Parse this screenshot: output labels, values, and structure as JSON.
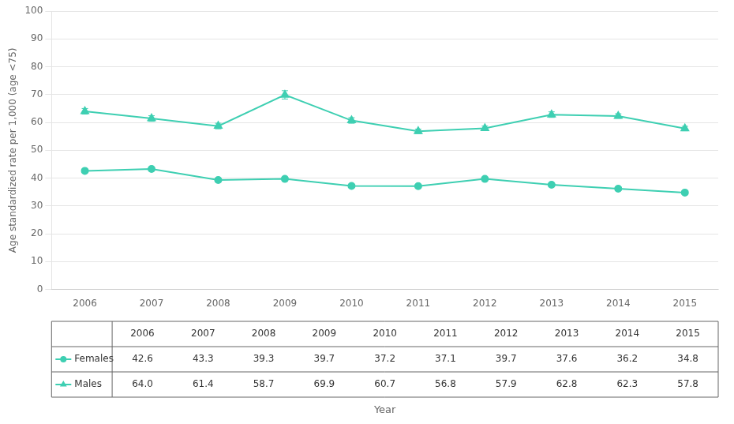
{
  "chart_data": {
    "type": "line",
    "x": [
      2006,
      2007,
      2008,
      2009,
      2010,
      2011,
      2012,
      2013,
      2014,
      2015
    ],
    "xlabel": "Year",
    "ylabel": "Age standardized rate per 1,000 (age <75)",
    "xlim": [
      2005.5,
      2015.5
    ],
    "xticks": [
      2006,
      2007,
      2008,
      2009,
      2010,
      2011,
      2012,
      2013,
      2014,
      2015
    ],
    "ylim": [
      0,
      100
    ],
    "yticks": [
      0,
      10,
      20,
      30,
      40,
      50,
      60,
      70,
      80,
      90,
      100
    ],
    "grid": true,
    "data_labels": true,
    "series": [
      {
        "name": "Females",
        "color": "#3ECFB2",
        "marker": "circle",
        "values": [
          42.6,
          43.3,
          39.3,
          39.7,
          37.2,
          37.1,
          39.7,
          37.6,
          36.2,
          34.8
        ],
        "errors": [
          0.6,
          0.6,
          0.6,
          0.6,
          0.6,
          0.6,
          0.6,
          0.6,
          0.6,
          0.6
        ]
      },
      {
        "name": "Males",
        "color": "#3ECFB2",
        "marker": "triangle",
        "values": [
          64.0,
          61.4,
          58.7,
          69.9,
          60.7,
          56.8,
          57.9,
          62.8,
          62.3,
          57.8
        ],
        "value_labels": [
          "64.0",
          "61.4",
          "58.7",
          "69.9",
          "60.7",
          "56.8",
          "57.9",
          "62.8",
          "62.3",
          "57.8"
        ],
        "errors": [
          1.0,
          1.0,
          1.0,
          1.5,
          1.0,
          0.8,
          0.8,
          1.0,
          0.8,
          0.8
        ]
      }
    ]
  }
}
